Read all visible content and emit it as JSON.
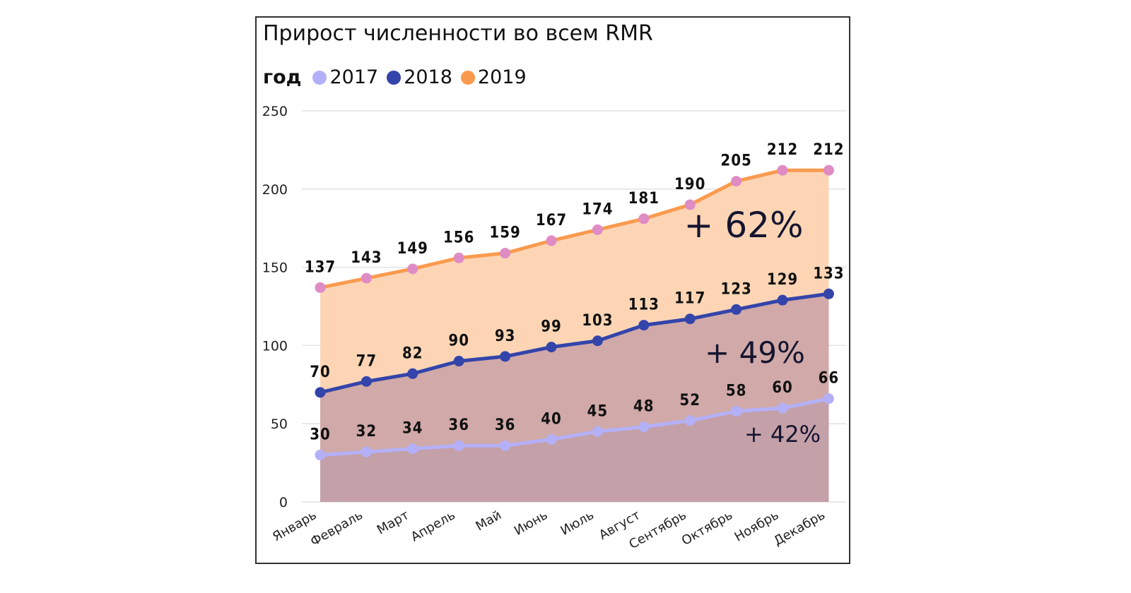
{
  "chart_data": {
    "type": "area",
    "title": "Прирост численности во всем RMR",
    "legend_title": "год",
    "legend_placement": "top-left",
    "categories": [
      "Январь",
      "Февраль",
      "Март",
      "Апрель",
      "Май",
      "Июнь",
      "Июль",
      "Август",
      "Сентябрь",
      "Октябрь",
      "Ноябрь",
      "Декабрь"
    ],
    "series": [
      {
        "name": "2017",
        "values": [
          30,
          32,
          34,
          36,
          36,
          40,
          45,
          48,
          52,
          58,
          60,
          66
        ],
        "line_color": "#B4B0F8",
        "marker_color": "#B4B0F8",
        "fill_color": "#C4A0A8"
      },
      {
        "name": "2018",
        "values": [
          70,
          77,
          82,
          90,
          93,
          99,
          103,
          113,
          117,
          123,
          129,
          133
        ],
        "line_color": "#3344AA",
        "marker_color": "#3344AA",
        "fill_color": "#D0A9A8"
      },
      {
        "name": "2019",
        "values": [
          137,
          143,
          149,
          156,
          159,
          167,
          174,
          181,
          190,
          205,
          212,
          212
        ],
        "line_color": "#FA9A4E",
        "marker_color": "#E08CC4",
        "fill_color": "#FDD5B5"
      }
    ],
    "ylim": [
      0,
      250
    ],
    "yticks": [
      0,
      50,
      100,
      150,
      200,
      250
    ],
    "grid": true,
    "annotations": [
      {
        "text": "+ 62%",
        "series": "2019"
      },
      {
        "text": "+ 49%",
        "series": "2018"
      },
      {
        "text": "+ 42%",
        "series": "2017"
      }
    ]
  }
}
